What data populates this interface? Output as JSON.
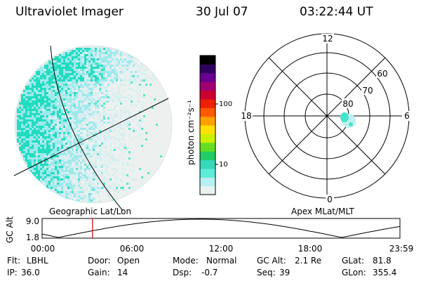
{
  "header": {
    "instrument": "Ultraviolet Imager",
    "date": "30 Jul 07",
    "time": "03:22:44 UT"
  },
  "colorbar": {
    "unit_label": "photon cm⁻²s⁻¹",
    "ticks": [
      "100",
      "10"
    ],
    "colors": [
      "#e9f2f2",
      "#b7f0f0",
      "#5cecd8",
      "#36d8b8",
      "#22cc66",
      "#66dd22",
      "#c8f000",
      "#ffe000",
      "#ffa000",
      "#ff5a00",
      "#ee2000",
      "#cc0030",
      "#a00070",
      "#6a0090",
      "#300060",
      "#000000"
    ]
  },
  "image_panel": {
    "label": "Geographic Lat/Lon",
    "swirl_colors": [
      "#22dcc0",
      "#9ee9ec",
      "#d9eef0",
      "#ecf1ef",
      "#55e6cc"
    ]
  },
  "polar_plot": {
    "label": "Apex MLat/MLT",
    "mlt_labels": [
      "12",
      "18",
      "6",
      "0"
    ],
    "lat_labels": [
      "60",
      "70",
      "80"
    ]
  },
  "alt_plot": {
    "ylabel": "GC Alt",
    "yticks": [
      "9.0",
      "1.8"
    ],
    "xticks": [
      "00:00",
      "06:00",
      "12:00",
      "18:00",
      "23:59"
    ],
    "current_time_marker_color": "#dd0000"
  },
  "params": {
    "filter_label": "Flt:",
    "filter_value": "LBHL",
    "door_label": "Door:",
    "door_value": "Open",
    "mode_label": "Mode:",
    "mode_value": "Normal",
    "gcalt_label": "GC Alt:",
    "gcalt_value": "2.1 Re",
    "glat_label": "GLat:",
    "glat_value": "81.8",
    "ip_label": "IP:",
    "ip_value": "36.0",
    "gain_label": "Gain:",
    "gain_value": "14",
    "dsp_label": "Dsp:",
    "dsp_value": "-0.7",
    "seq_label": "Seq:",
    "seq_value": "39",
    "glon_label": "GLon:",
    "glon_value": "355.4"
  }
}
